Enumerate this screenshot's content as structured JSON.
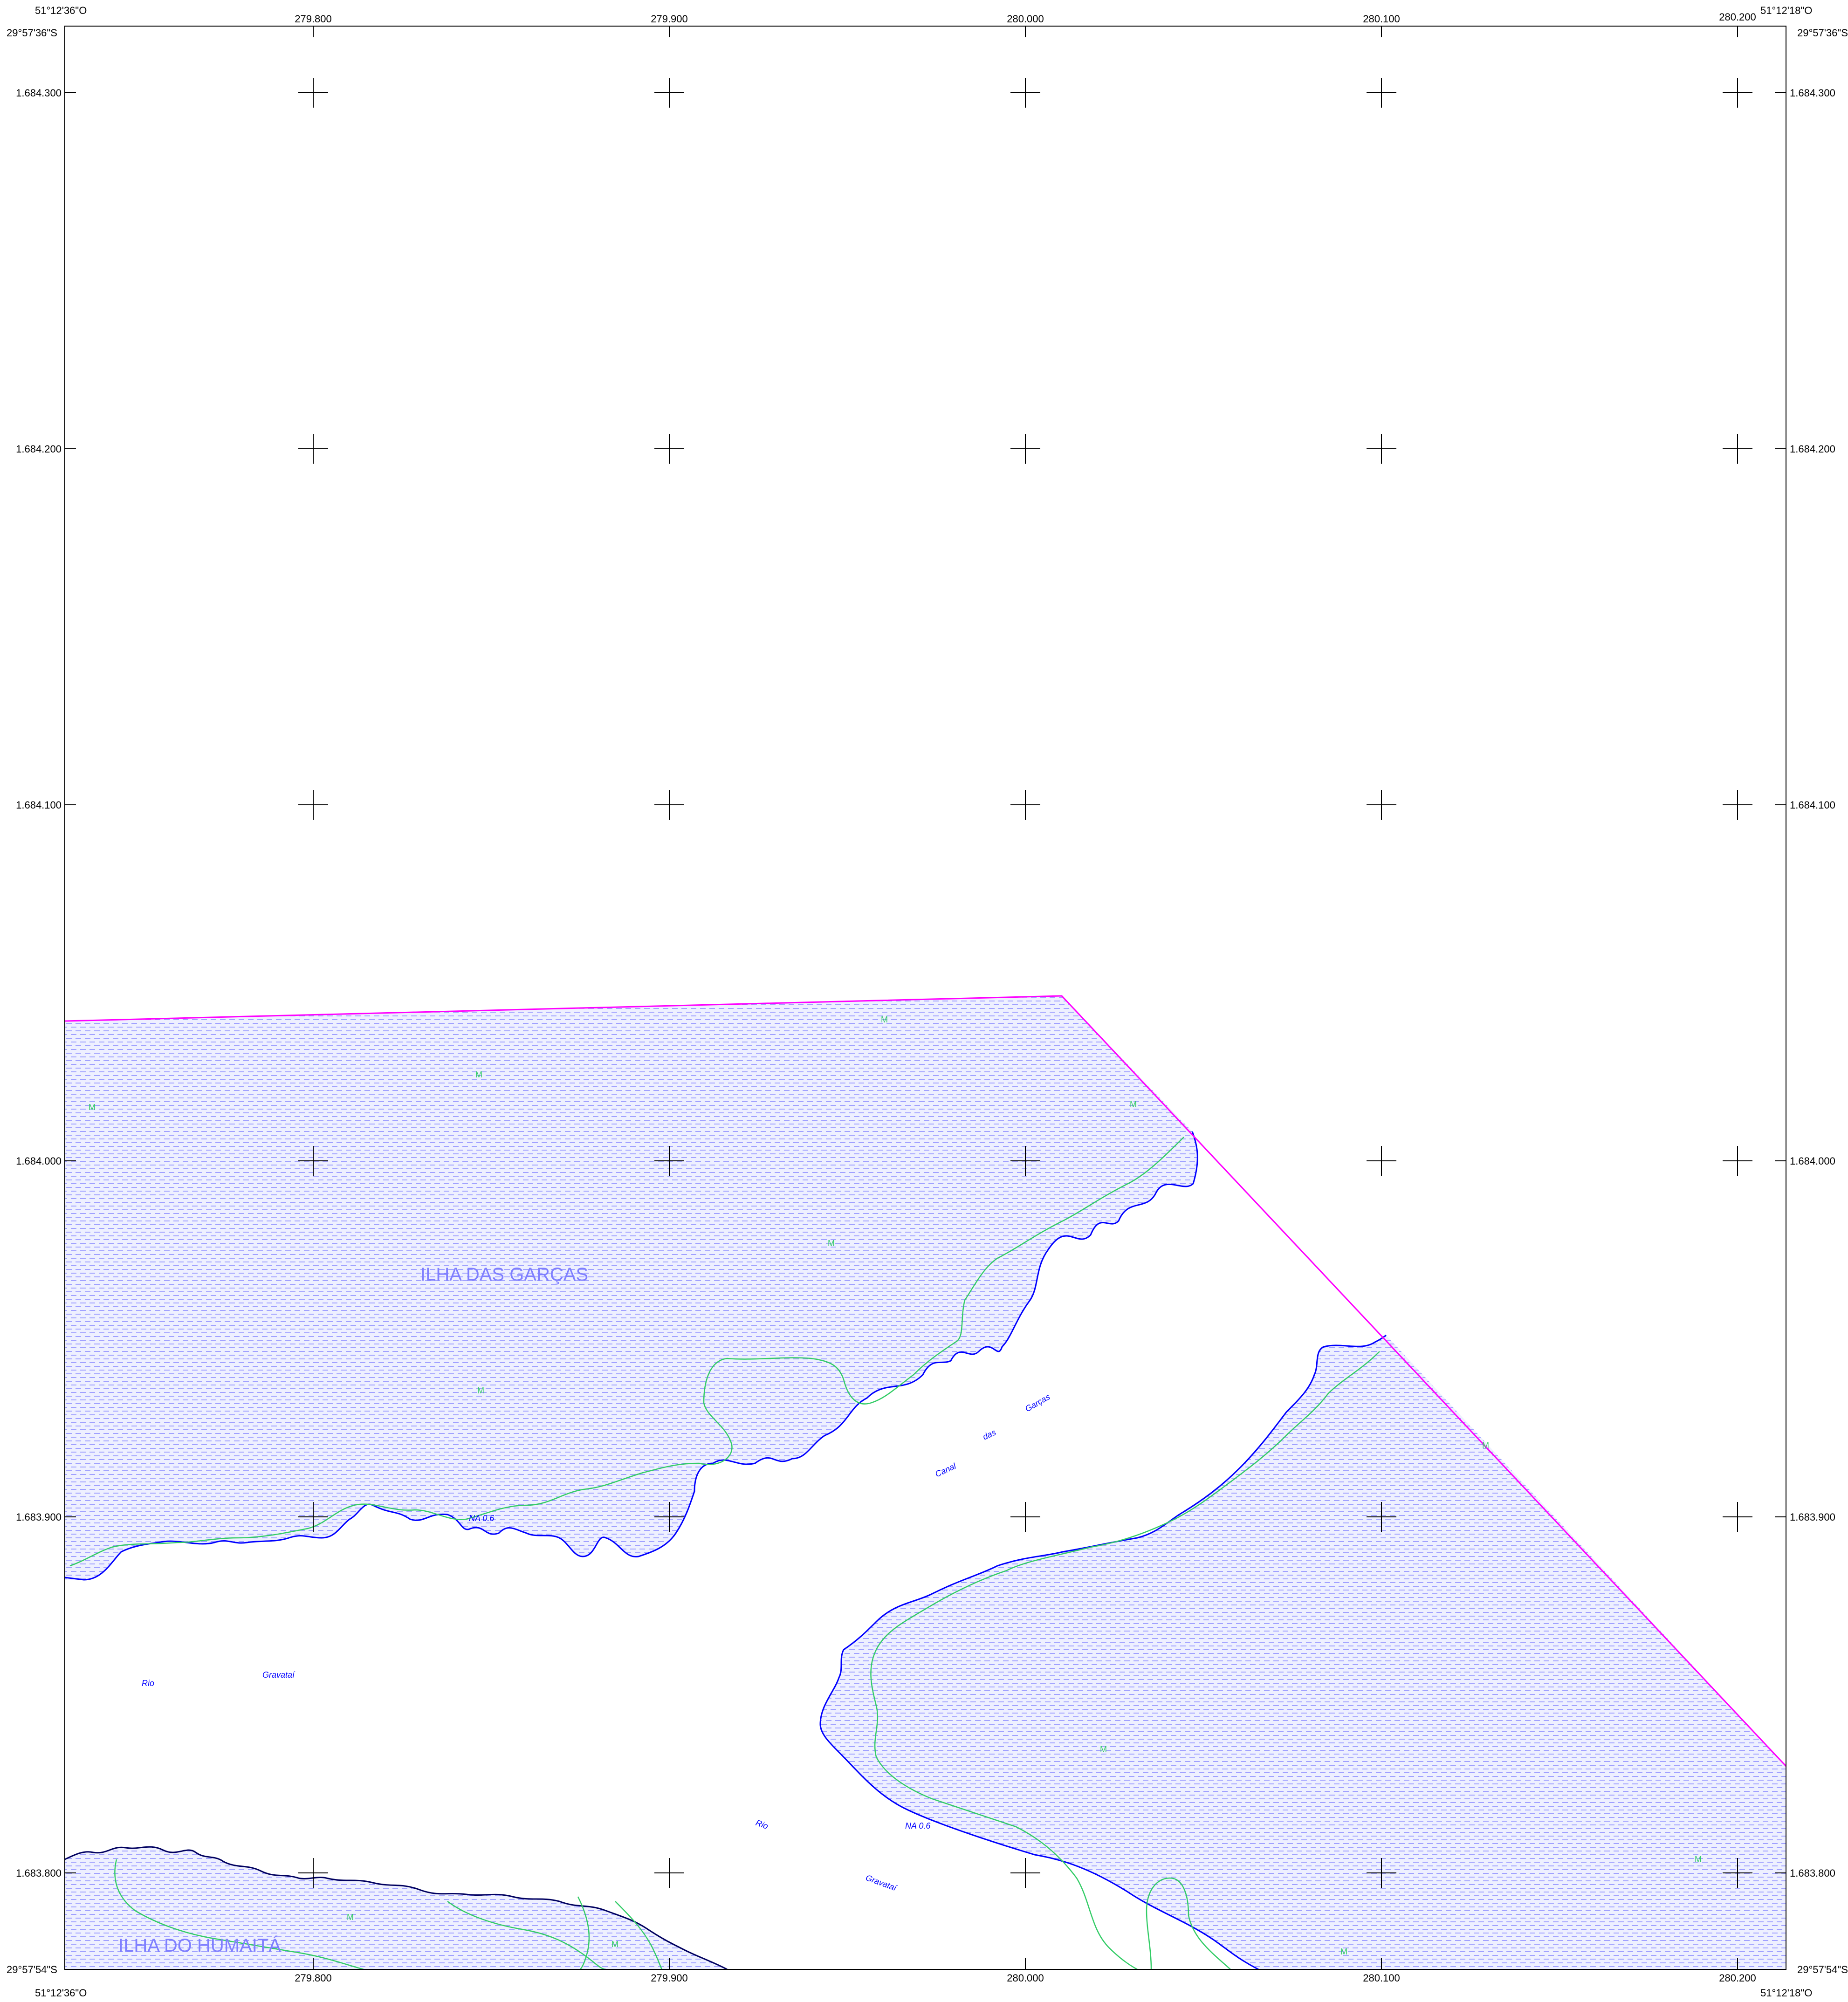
{
  "map": {
    "corners": {
      "top_left_lon": "51°12'36\"O",
      "top_left_lat": "29°57'36\"S",
      "top_right_lon": "51°12'18\"O",
      "top_right_lat": "29°57'36\"S",
      "bottom_left_lat": "29°57'54\"S",
      "bottom_left_lon": "51°12'36\"O",
      "bottom_right_lat": "29°57'54\"S",
      "bottom_right_lon": "51°12'18\"O"
    },
    "easting_labels": [
      "279.800",
      "279.900",
      "280.000",
      "280.100",
      "280.200"
    ],
    "northing_labels": [
      "1.684.300",
      "1.684.200",
      "1.684.100",
      "1.684.000",
      "1.683.900",
      "1.683.800"
    ],
    "place_names": {
      "ilha_garcas": "ILHA DAS GARÇAS",
      "ilha_humaita": "ILHA DO HUMAITÁ"
    },
    "water_labels": {
      "rio_1": "Rio",
      "gravatai_1": "Gravataí",
      "rio_2": "Rio",
      "gravatai_2": "Gravataí",
      "canal": "Canal",
      "das": "das",
      "garcas": "Garças",
      "na_1": "NA 0.6",
      "na_2": "NA 0.6"
    },
    "veg_mark": "M",
    "colors": {
      "marsh_fill": "#eef0ff",
      "marsh_dash": "#7f7fff",
      "shoreline": "#0000ff",
      "vegetation_line": "#33cc66",
      "boundary": "#ff00ff",
      "frame": "#000000"
    }
  }
}
